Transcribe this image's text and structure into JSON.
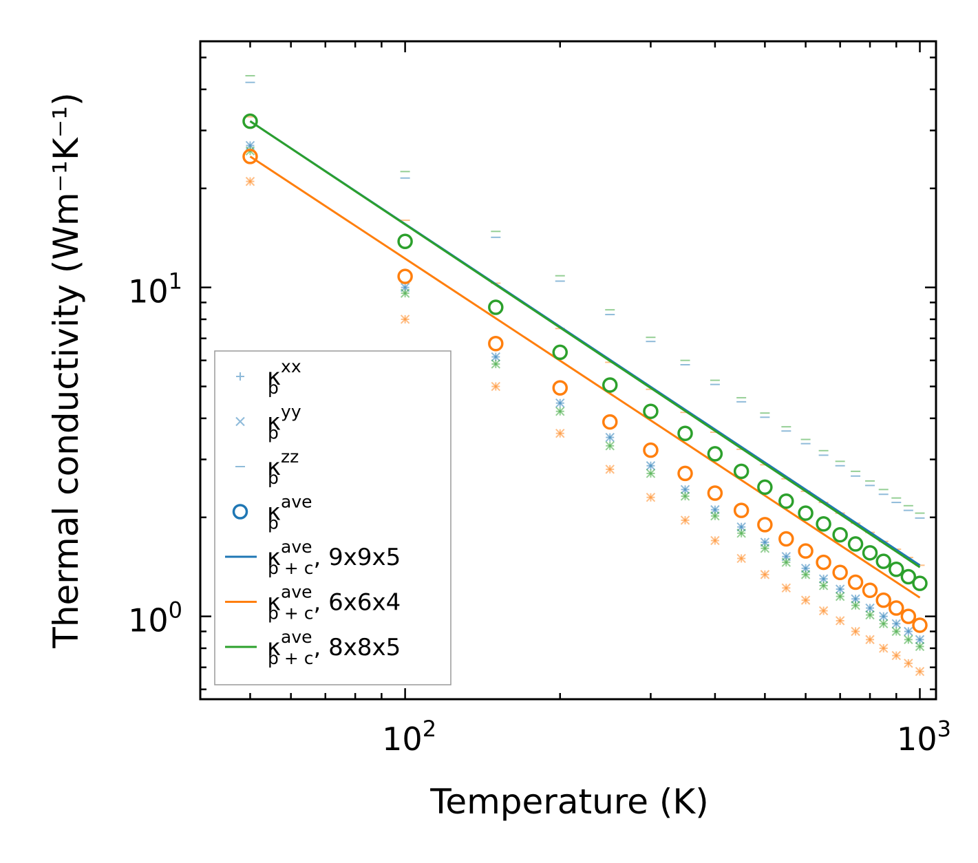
{
  "chart_data": {
    "type": "scatter",
    "xscale": "log",
    "yscale": "log",
    "xlabel": "Temperature (K)",
    "ylabel": "Thermal conductivity (Wm⁻¹K⁻¹)",
    "xlim": [
      40,
      1075
    ],
    "ylim": [
      0.56,
      56
    ],
    "x_ticks": [
      {
        "value": 100,
        "base": "10",
        "exp": "2"
      },
      {
        "value": 1000,
        "base": "10",
        "exp": "3"
      }
    ],
    "y_ticks": [
      {
        "value": 1,
        "base": "10",
        "exp": "0"
      },
      {
        "value": 10,
        "base": "10",
        "exp": "1"
      }
    ],
    "legend_position": "lower-left",
    "colors": {
      "blue": "#1f77b4",
      "orange": "#ff7f0e",
      "green": "#2ca02c"
    },
    "x": [
      50,
      100,
      150,
      200,
      250,
      300,
      350,
      400,
      450,
      500,
      550,
      600,
      650,
      700,
      750,
      800,
      850,
      900,
      950,
      1000
    ],
    "ave_points": [
      {
        "name": "kp_ave 6x6x4",
        "color": "orange",
        "values": [
          25.0,
          10.8,
          6.75,
          4.95,
          3.9,
          3.2,
          2.72,
          2.37,
          2.1,
          1.9,
          1.72,
          1.58,
          1.46,
          1.36,
          1.27,
          1.2,
          1.12,
          1.06,
          1.0,
          0.94
        ]
      },
      {
        "name": "kp_ave 8x8x5",
        "color": "green",
        "values": [
          32.0,
          13.8,
          8.7,
          6.35,
          5.05,
          4.2,
          3.6,
          3.12,
          2.76,
          2.47,
          2.24,
          2.06,
          1.91,
          1.77,
          1.66,
          1.56,
          1.47,
          1.39,
          1.32,
          1.26
        ]
      }
    ],
    "fit_lines": [
      {
        "name": "kp+c_ave 9x9x5",
        "color": "blue",
        "x": [
          50,
          1000
        ],
        "values": [
          32.0,
          1.43
        ]
      },
      {
        "name": "kp+c_ave 6x6x4",
        "color": "orange",
        "x": [
          50,
          1000
        ],
        "values": [
          25.0,
          1.14
        ]
      },
      {
        "name": "kp+c_ave 8x8x5",
        "color": "green",
        "x": [
          50,
          1000
        ],
        "values": [
          32.0,
          1.41
        ]
      }
    ],
    "directional": [
      {
        "name": "kp_xx blue",
        "color": "blue",
        "marker": "+",
        "values": [
          27.0,
          10.0,
          6.15,
          4.45,
          3.5,
          2.87,
          2.43,
          2.11,
          1.87,
          1.68,
          1.52,
          1.4,
          1.3,
          1.21,
          1.13,
          1.06,
          1.0,
          0.95,
          0.9,
          0.85
        ]
      },
      {
        "name": "kp_yy blue",
        "color": "blue",
        "marker": "x",
        "values": [
          27.0,
          10.0,
          6.15,
          4.45,
          3.5,
          2.87,
          2.43,
          2.11,
          1.87,
          1.68,
          1.52,
          1.4,
          1.3,
          1.21,
          1.13,
          1.06,
          1.0,
          0.95,
          0.9,
          0.85
        ]
      },
      {
        "name": "kp_zz blue",
        "color": "blue",
        "marker": "_",
        "values": [
          42.0,
          21.5,
          14.2,
          10.45,
          8.27,
          6.85,
          5.82,
          5.07,
          4.49,
          4.03,
          3.66,
          3.35,
          3.09,
          2.87,
          2.67,
          2.5,
          2.35,
          2.22,
          2.1,
          1.99
        ]
      },
      {
        "name": "kp_xx orange",
        "color": "orange",
        "marker": "+",
        "values": [
          21.0,
          8.0,
          5.0,
          3.6,
          2.8,
          2.3,
          1.96,
          1.7,
          1.5,
          1.34,
          1.22,
          1.12,
          1.04,
          0.97,
          0.9,
          0.85,
          0.8,
          0.76,
          0.72,
          0.68
        ]
      },
      {
        "name": "kp_yy orange",
        "color": "orange",
        "marker": "x",
        "values": [
          21.0,
          8.0,
          5.0,
          3.6,
          2.8,
          2.3,
          1.96,
          1.7,
          1.5,
          1.34,
          1.22,
          1.12,
          1.04,
          0.97,
          0.9,
          0.85,
          0.8,
          0.76,
          0.72,
          0.68
        ]
      },
      {
        "name": "kp_zz orange",
        "color": "orange",
        "marker": "_",
        "values": [
          33.0,
          16.0,
          10.3,
          7.5,
          5.92,
          4.9,
          4.17,
          3.63,
          3.22,
          2.89,
          2.62,
          2.4,
          2.22,
          2.06,
          1.92,
          1.8,
          1.69,
          1.6,
          1.51,
          1.43
        ]
      },
      {
        "name": "kp_xx green",
        "color": "green",
        "marker": "+",
        "values": [
          26.0,
          9.6,
          5.85,
          4.2,
          3.3,
          2.72,
          2.32,
          2.02,
          1.79,
          1.61,
          1.46,
          1.34,
          1.24,
          1.15,
          1.08,
          1.01,
          0.95,
          0.9,
          0.85,
          0.81
        ]
      },
      {
        "name": "kp_yy green",
        "color": "green",
        "marker": "x",
        "values": [
          26.0,
          9.6,
          5.85,
          4.2,
          3.3,
          2.72,
          2.32,
          2.02,
          1.79,
          1.61,
          1.46,
          1.34,
          1.24,
          1.15,
          1.08,
          1.01,
          0.95,
          0.9,
          0.85,
          0.81
        ]
      },
      {
        "name": "kp_zz green",
        "color": "green",
        "marker": "_",
        "values": [
          44.0,
          22.5,
          14.8,
          10.85,
          8.55,
          7.05,
          6.0,
          5.22,
          4.62,
          4.15,
          3.77,
          3.45,
          3.19,
          2.96,
          2.76,
          2.58,
          2.43,
          2.29,
          2.17,
          2.06
        ]
      }
    ],
    "legend": [
      {
        "type": "marker",
        "marker": "+",
        "color": "blue",
        "sym": "κ",
        "sub": "p",
        "sup": "xx",
        "suffix": ""
      },
      {
        "type": "marker",
        "marker": "x",
        "color": "blue",
        "sym": "κ",
        "sub": "p",
        "sup": "yy",
        "suffix": ""
      },
      {
        "type": "marker",
        "marker": "_",
        "color": "blue",
        "sym": "κ",
        "sub": "p",
        "sup": "zz",
        "suffix": ""
      },
      {
        "type": "marker",
        "marker": "o",
        "color": "blue",
        "sym": "κ",
        "sub": "p",
        "sup": "ave",
        "suffix": ""
      },
      {
        "type": "line",
        "color": "blue",
        "sym": "κ",
        "sub": "p + c",
        "sup": "ave",
        "suffix": ", 9x9x5"
      },
      {
        "type": "line",
        "color": "orange",
        "sym": "κ",
        "sub": "p + c",
        "sup": "ave",
        "suffix": ", 6x6x4"
      },
      {
        "type": "line",
        "color": "green",
        "sym": "κ",
        "sub": "p + c",
        "sup": "ave",
        "suffix": ", 8x8x5"
      }
    ]
  }
}
